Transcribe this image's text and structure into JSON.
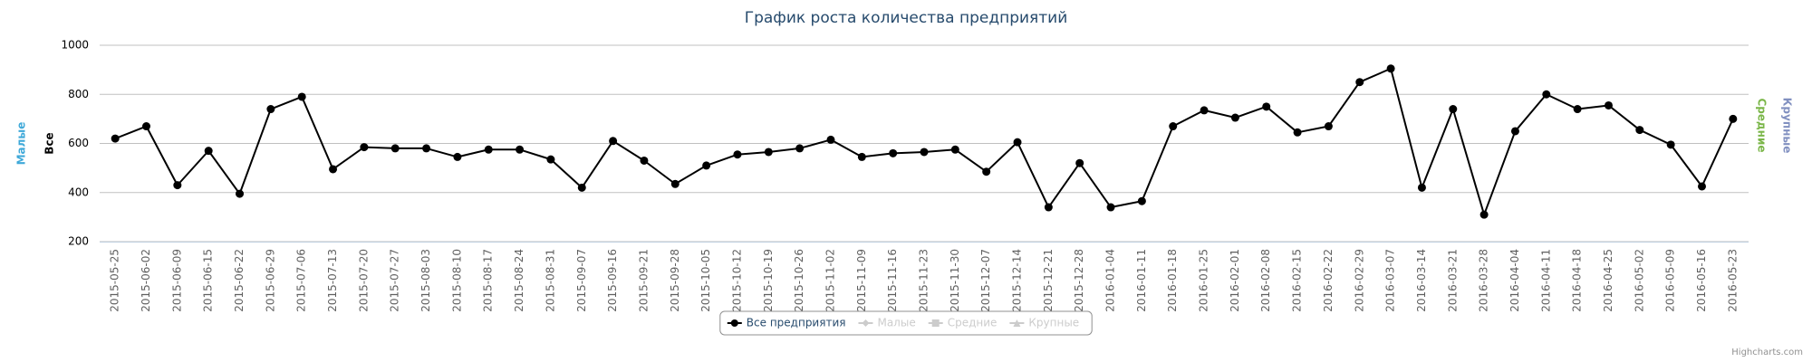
{
  "chart_data": {
    "type": "line",
    "title": "График роста количества предприятий",
    "categories": [
      "2015-05-25",
      "2015-06-02",
      "2015-06-09",
      "2015-06-15",
      "2015-06-22",
      "2015-06-29",
      "2015-07-06",
      "2015-07-13",
      "2015-07-20",
      "2015-07-27",
      "2015-08-03",
      "2015-08-10",
      "2015-08-17",
      "2015-08-24",
      "2015-08-31",
      "2015-09-07",
      "2015-09-16",
      "2015-09-21",
      "2015-09-28",
      "2015-10-05",
      "2015-10-12",
      "2015-10-19",
      "2015-10-26",
      "2015-11-02",
      "2015-11-09",
      "2015-11-16",
      "2015-11-23",
      "2015-11-30",
      "2015-12-07",
      "2015-12-14",
      "2015-12-21",
      "2015-12-28",
      "2016-01-04",
      "2016-01-11",
      "2016-01-18",
      "2016-01-25",
      "2016-02-01",
      "2016-02-08",
      "2016-02-15",
      "2016-02-22",
      "2016-02-29",
      "2016-03-07",
      "2016-03-14",
      "2016-03-21",
      "2016-03-28",
      "2016-04-04",
      "2016-04-11",
      "2016-04-18",
      "2016-04-25",
      "2016-05-02",
      "2016-05-09",
      "2016-05-16",
      "2016-05-23"
    ],
    "series": [
      {
        "name": "Все предприятия",
        "color": "#000000",
        "visible": true,
        "values": [
          620,
          670,
          430,
          570,
          395,
          740,
          790,
          495,
          585,
          580,
          580,
          545,
          575,
          575,
          535,
          420,
          610,
          530,
          435,
          510,
          555,
          565,
          580,
          615,
          545,
          560,
          565,
          575,
          485,
          605,
          340,
          520,
          340,
          365,
          670,
          735,
          705,
          750,
          645,
          670,
          850,
          905,
          420,
          740,
          310,
          650,
          800,
          740,
          755,
          655,
          595,
          425,
          700
        ]
      },
      {
        "name": "Малые",
        "color": "#3fa9d9",
        "visible": false
      },
      {
        "name": "Средние",
        "color": "#7ab648",
        "visible": false
      },
      {
        "name": "Крупные",
        "color": "#8190c0",
        "visible": false
      }
    ],
    "y_axis_titles": {
      "left": [
        "Малые",
        "Все"
      ],
      "right": [
        "Средние",
        "Крупные"
      ]
    },
    "ylim": [
      200,
      1000
    ],
    "yticks": [
      200,
      400,
      600,
      800,
      1000
    ],
    "grid": true,
    "legend": "bottom",
    "credit": "Highcharts.com"
  }
}
